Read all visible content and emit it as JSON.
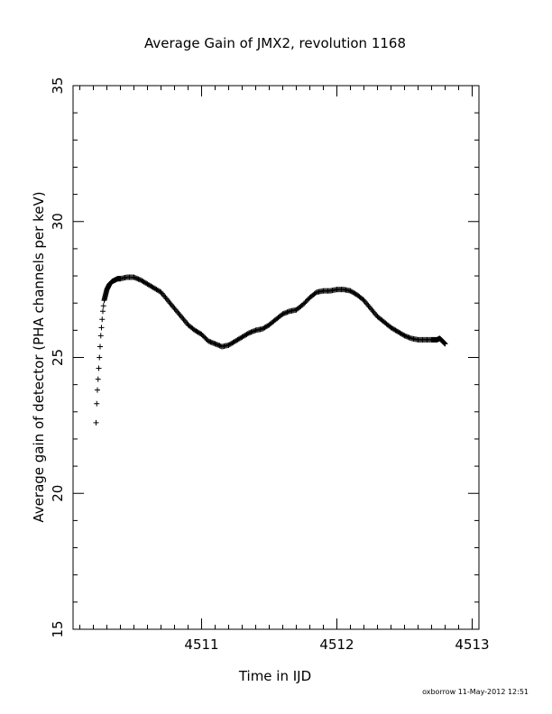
{
  "chart_data": {
    "type": "scatter",
    "title": "Average Gain of JMX2, revolution 1168",
    "xlabel": "Time in IJD",
    "ylabel": "Average gain of detector (PHA channels per keV)",
    "xlim": [
      4510.05,
      4513.05
    ],
    "ylim": [
      15,
      35
    ],
    "xticks": [
      4511,
      4512,
      4513
    ],
    "xtick_labels": [
      "4511",
      "4512",
      "4513"
    ],
    "yticks": [
      15,
      20,
      25,
      30,
      35
    ],
    "ytick_labels": [
      "15",
      "20",
      "25",
      "30",
      "35"
    ],
    "grid": false,
    "marker": "+",
    "series": [
      {
        "x": [
          4510.22,
          4510.225,
          4510.23,
          4510.235,
          4510.24,
          4510.245,
          4510.25,
          4510.255,
          4510.26,
          4510.265,
          4510.27,
          4510.275,
          4510.28,
          4510.29,
          4510.3,
          4510.31,
          4510.32,
          4510.34,
          4510.36,
          4510.38,
          4510.4,
          4510.45,
          4510.5,
          4510.55,
          4510.6,
          4510.65,
          4510.7,
          4510.75,
          4510.8,
          4510.85,
          4510.9,
          4510.95,
          4511.0,
          4511.05,
          4511.1,
          4511.15,
          4511.2,
          4511.25,
          4511.3,
          4511.35,
          4511.4,
          4511.45,
          4511.5,
          4511.55,
          4511.6,
          4511.65,
          4511.7,
          4511.75,
          4511.8,
          4511.85,
          4511.9,
          4511.95,
          4512.0,
          4512.05,
          4512.1,
          4512.15,
          4512.2,
          4512.25,
          4512.3,
          4512.35,
          4512.4,
          4512.45,
          4512.5,
          4512.55,
          4512.6,
          4512.65,
          4512.7,
          4512.74,
          4512.76,
          4512.78,
          4512.8
        ],
        "y": [
          22.6,
          23.3,
          23.8,
          24.2,
          24.6,
          25.0,
          25.4,
          25.8,
          26.1,
          26.4,
          26.7,
          26.9,
          27.1,
          27.3,
          27.5,
          27.6,
          27.7,
          27.8,
          27.85,
          27.9,
          27.9,
          27.95,
          27.95,
          27.85,
          27.7,
          27.55,
          27.4,
          27.1,
          26.8,
          26.5,
          26.2,
          26.0,
          25.85,
          25.6,
          25.5,
          25.4,
          25.45,
          25.6,
          25.75,
          25.9,
          26.0,
          26.05,
          26.2,
          26.4,
          26.6,
          26.7,
          26.75,
          26.95,
          27.2,
          27.4,
          27.45,
          27.45,
          27.5,
          27.5,
          27.45,
          27.3,
          27.1,
          26.8,
          26.5,
          26.3,
          26.1,
          25.95,
          25.8,
          25.7,
          25.65,
          25.65,
          25.65,
          25.65,
          25.7,
          25.6,
          25.5
        ]
      }
    ],
    "footer_note": "oxborrow 11-May-2012 12:51"
  }
}
